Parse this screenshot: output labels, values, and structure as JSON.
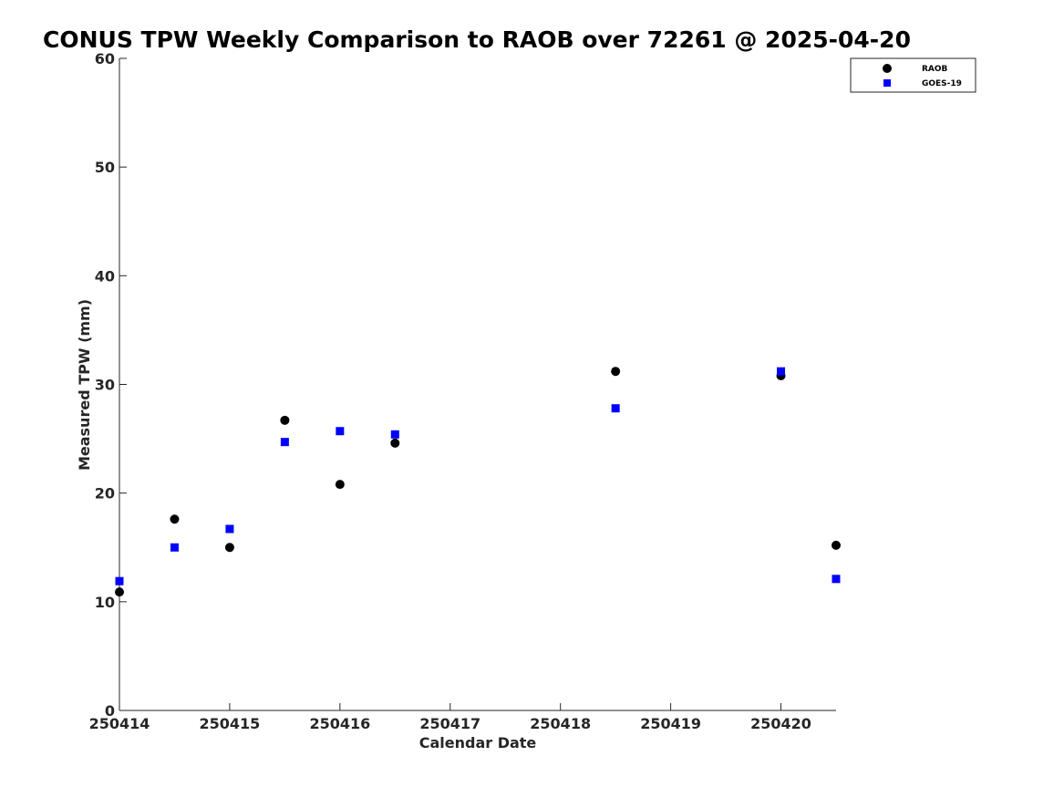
{
  "chart_data": {
    "type": "scatter",
    "title": "CONUS TPW Weekly Comparison to RAOB over 72261 @ 2025-04-20",
    "xlabel": "Calendar Date",
    "ylabel": "Measured TPW (mm)",
    "xlim": [
      250414,
      250420.5
    ],
    "ylim": [
      0,
      60
    ],
    "xticks": [
      250414,
      250415,
      250416,
      250417,
      250418,
      250419,
      250420
    ],
    "xtick_labels": [
      "250414",
      "250415",
      "250416",
      "250417",
      "250418",
      "250419",
      "250420"
    ],
    "yticks": [
      0,
      10,
      20,
      30,
      40,
      50,
      60
    ],
    "ytick_labels": [
      "0",
      "10",
      "20",
      "30",
      "40",
      "50",
      "60"
    ],
    "grid": false,
    "legend_position": "top-right",
    "series": [
      {
        "name": "RAOB",
        "marker": "circle",
        "color": "#000000",
        "x": [
          250414,
          250414.5,
          250415,
          250415.5,
          250416,
          250416.5,
          250418.5,
          250420,
          250420.5
        ],
        "y": [
          10.9,
          17.6,
          15.0,
          26.7,
          20.8,
          24.6,
          31.2,
          30.8,
          15.2
        ]
      },
      {
        "name": "GOES-19",
        "marker": "square",
        "color": "#0000ff",
        "x": [
          250414,
          250414.5,
          250415,
          250415.5,
          250416,
          250416.5,
          250418.5,
          250420,
          250420.5
        ],
        "y": [
          11.9,
          15.0,
          16.7,
          24.7,
          25.7,
          25.4,
          27.8,
          31.2,
          12.1
        ]
      }
    ]
  }
}
